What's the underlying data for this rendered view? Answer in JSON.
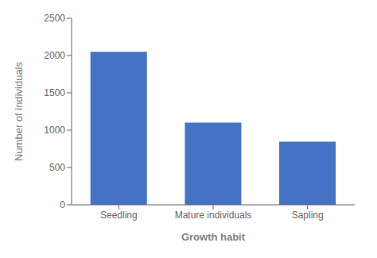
{
  "chart_data": {
    "type": "bar",
    "categories": [
      "Seedling",
      "Mature individuals",
      "Sapling"
    ],
    "values": [
      2050,
      1100,
      845
    ],
    "color": "#4472C4",
    "xlabel": "Growth habit",
    "ylabel": "Number of individuals",
    "ylim": [
      0,
      2500
    ],
    "yticks": [
      0,
      500,
      1000,
      1500,
      2000,
      2500
    ],
    "grid": false
  }
}
